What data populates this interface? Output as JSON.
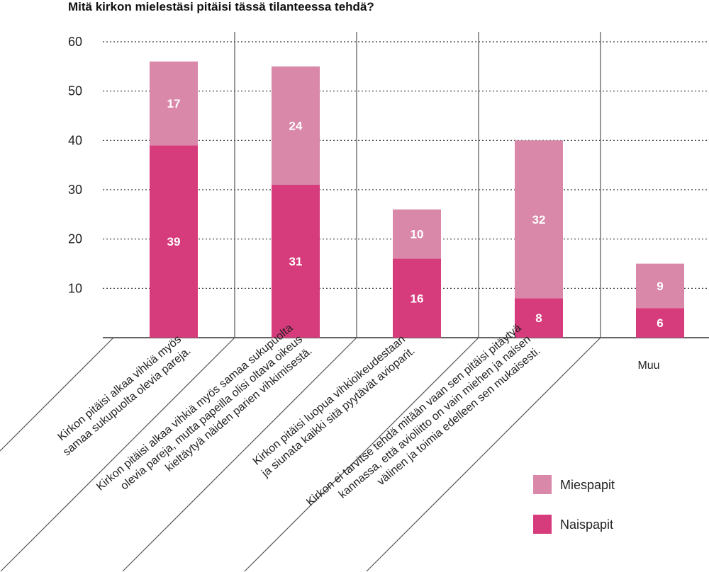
{
  "chart_data": {
    "type": "bar",
    "stacked": true,
    "title": "Mitä kirkon mielestäsi pitäisi tässä tilanteessa tehdä?",
    "xlabel": "",
    "ylabel": "",
    "ylim": [
      0,
      60
    ],
    "yticks": [
      "60",
      "50",
      "40",
      "30",
      "20",
      "10"
    ],
    "grid": true,
    "legend_position": "bottom-right",
    "categories": [
      [
        "Kirkon pitäisi alkaa vihkiä myös",
        "samaa sukupuolta olevia pareja."
      ],
      [
        "Kirkon pitäisi alkaa vihkiä myös samaa sukupuolta",
        "olevia pareja, mutta papeilla olisi oltava oikeus",
        "kieltäytyä näiden parien vihkimisestä."
      ],
      [
        "Kirkon pitäisi luopua vihkioikeudestaan",
        "ja siunata kaikki sitä pyytävät avioparit."
      ],
      [
        "Kirkon ei tarvitse tehdä mitään vaan sen pitäisi pitäytyä",
        "kannassa, että avioliitto on vain miehen ja naisen",
        "välinen ja toimia edelleen sen mukaisesti."
      ],
      [
        "Muu"
      ]
    ],
    "series": [
      {
        "name": "Naispapit",
        "color": "#d63b7b",
        "values": [
          39,
          31,
          16,
          8,
          6
        ]
      },
      {
        "name": "Miespapit",
        "color": "#d988a9",
        "values": [
          17,
          24,
          10,
          32,
          9
        ]
      }
    ]
  }
}
